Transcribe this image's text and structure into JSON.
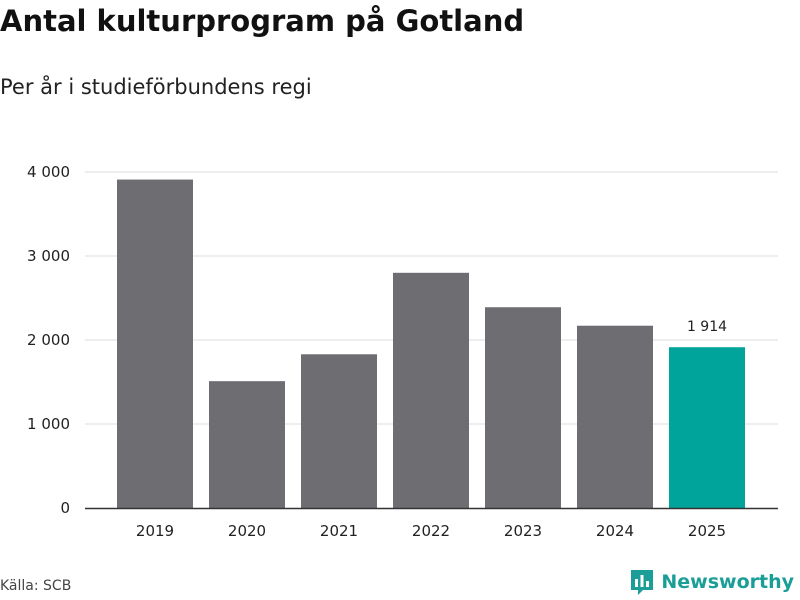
{
  "chart_data": {
    "type": "bar",
    "title": "Antal kulturprogram på Gotland",
    "subtitle": "Per år i studieförbundens regi",
    "categories": [
      "2019",
      "2020",
      "2021",
      "2022",
      "2023",
      "2024",
      "2025"
    ],
    "values": [
      3910,
      1510,
      1830,
      2800,
      2390,
      2170,
      1914
    ],
    "highlight_index": 6,
    "highlight_label": "1 914",
    "yticks": [
      0,
      1000,
      2000,
      3000,
      4000
    ],
    "ytick_labels": [
      "0",
      "1 000",
      "2 000",
      "3 000",
      "4 000"
    ],
    "ylim": [
      0,
      4000
    ],
    "xlabel": "",
    "ylabel": "",
    "colors": {
      "bar": "#6e6d72",
      "highlight": "#00a49a",
      "grid": "#dddddd",
      "axis": "#333333"
    }
  },
  "footer": {
    "source": "Källa: SCB",
    "brand": "Newsworthy",
    "brand_icon": "newsworthy-logo-icon"
  }
}
